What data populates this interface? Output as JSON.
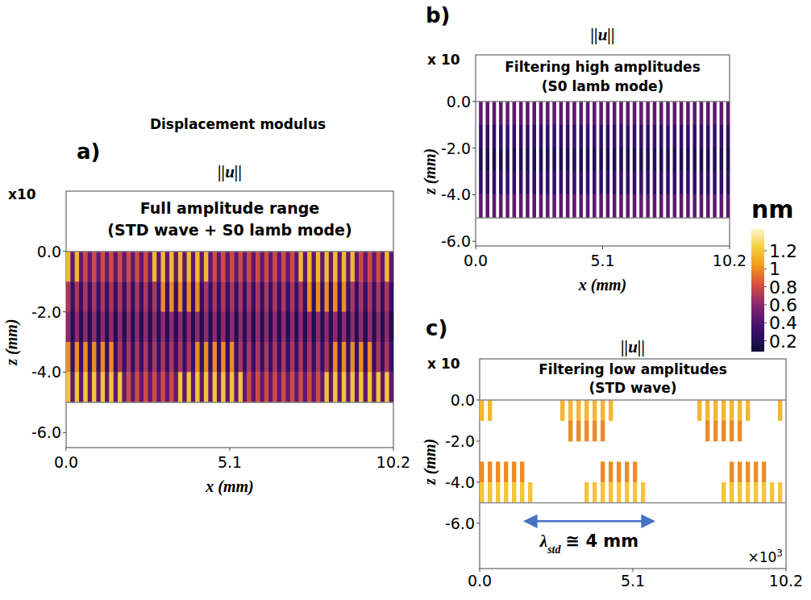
{
  "title": "Displacement modulus",
  "colorbar": {
    "title": "nm",
    "range": [
      0.08,
      1.45
    ],
    "ticks": [
      0.2,
      0.4,
      0.6,
      0.8,
      1,
      1.2
    ]
  },
  "chart_data": [
    {
      "type": "heatmap",
      "panel_label": "a)",
      "title": "||u||",
      "subtitle": [
        "Full amplitude range",
        "(STD wave + S0 lamb mode)"
      ],
      "x_label": "x (mm)",
      "y_label": "z (mm)",
      "y_scale_label": "x10",
      "xlim": [
        0,
        10.2
      ],
      "ylim": [
        -6.5,
        2.0
      ],
      "xticks": [
        {
          "value": 0,
          "label": "0.0"
        },
        5.1,
        10.2
      ],
      "yticks": [
        {
          "value": 0,
          "label": "0.0"
        },
        {
          "value": -2,
          "label": "-2.0"
        },
        {
          "value": -4,
          "label": "-4.0"
        },
        {
          "value": -6,
          "label": "-6.0"
        }
      ],
      "cells_x_range": [
        0,
        10.2
      ],
      "cells_z_range": [
        0,
        -5
      ],
      "cells": [
        [
          1.15,
          0.45,
          1.15,
          0.45,
          0.8,
          0.45,
          0.8,
          0.45,
          0.8,
          0.45,
          0.8,
          0.45,
          0.8,
          0.45,
          0.8,
          0.45,
          0.8,
          0.45,
          0.8,
          0.45,
          1.15,
          0.45,
          1.15,
          0.45,
          1.15,
          0.45,
          1.15,
          0.45,
          1.15,
          0.45,
          1.15,
          0.45,
          1.15,
          0.45,
          0.8,
          0.45,
          0.8,
          0.45,
          0.8,
          0.45,
          0.8,
          0.45,
          0.8,
          0.45,
          0.8,
          0.45,
          0.8,
          0.45,
          0.8,
          0.45,
          0.8,
          0.45,
          0.8,
          0.45,
          1.15,
          0.45,
          1.15,
          0.45,
          1.15,
          0.45,
          1.15,
          0.45,
          1.15,
          0.45,
          1.15,
          0.45,
          1.15,
          0.45,
          0.8,
          0.45,
          0.8,
          0.45,
          0.8,
          0.45,
          1.15,
          0.45
        ],
        [
          0.7,
          0.3,
          0.7,
          0.3,
          0.7,
          0.3,
          0.7,
          0.3,
          0.7,
          0.3,
          0.7,
          0.3,
          0.7,
          0.3,
          0.7,
          0.3,
          0.7,
          0.3,
          0.7,
          0.3,
          0.7,
          0.3,
          1,
          0.3,
          1,
          0.3,
          1,
          0.3,
          1,
          0.3,
          1,
          0.3,
          0.7,
          0.3,
          0.7,
          0.3,
          0.7,
          0.3,
          0.7,
          0.3,
          0.7,
          0.3,
          0.7,
          0.3,
          0.7,
          0.3,
          0.7,
          0.3,
          0.7,
          0.3,
          0.7,
          0.3,
          0.7,
          0.3,
          0.7,
          0.3,
          1,
          0.3,
          1,
          0.3,
          1,
          0.3,
          1,
          0.3,
          1,
          0.3,
          0.7,
          0.3,
          0.7,
          0.3,
          0.7,
          0.3,
          0.7,
          0.3,
          0.7,
          0.3
        ],
        [
          0.62,
          0.2,
          0.62,
          0.2,
          0.62,
          0.2,
          0.62,
          0.2,
          0.62,
          0.2,
          0.62,
          0.2,
          0.62,
          0.2,
          0.62,
          0.2,
          0.62,
          0.2,
          0.62,
          0.2,
          0.62,
          0.2,
          0.62,
          0.2,
          0.62,
          0.2,
          0.62,
          0.2,
          0.62,
          0.2,
          0.62,
          0.2,
          0.62,
          0.2,
          0.62,
          0.2,
          0.62,
          0.2,
          0.62,
          0.2,
          0.62,
          0.2,
          0.62,
          0.2,
          0.62,
          0.2,
          0.62,
          0.2,
          0.62,
          0.2,
          0.62,
          0.2,
          0.62,
          0.2,
          0.62,
          0.2,
          0.62,
          0.2,
          0.62,
          0.2,
          0.62,
          0.2,
          0.62,
          0.2,
          0.62,
          0.2,
          0.62,
          0.2,
          0.62,
          0.2,
          0.62,
          0.2,
          0.62,
          0.2,
          0.62,
          0.2
        ],
        [
          1,
          0.3,
          1,
          0.3,
          1,
          0.3,
          1,
          0.3,
          1,
          0.3,
          1,
          0.3,
          0.7,
          0.3,
          0.7,
          0.3,
          0.7,
          0.3,
          0.7,
          0.3,
          0.7,
          0.3,
          0.7,
          0.3,
          0.7,
          0.3,
          0.7,
          0.3,
          0.7,
          0.3,
          1,
          0.3,
          1,
          0.3,
          1,
          0.3,
          1,
          0.3,
          1,
          0.3,
          0.7,
          0.3,
          0.7,
          0.3,
          0.7,
          0.3,
          0.7,
          0.3,
          0.7,
          0.3,
          0.7,
          0.3,
          0.7,
          0.3,
          0.7,
          0.3,
          0.7,
          0.3,
          0.7,
          0.3,
          0.7,
          0.3,
          1,
          0.3,
          1,
          0.3,
          1,
          0.3,
          1,
          0.3,
          1,
          0.3,
          0.7,
          0.3,
          0.7,
          0.3
        ],
        [
          1.2,
          0.45,
          1.2,
          0.45,
          1.2,
          0.45,
          1.2,
          0.45,
          1.2,
          0.45,
          1.2,
          0.45,
          1.2,
          0.45,
          0.8,
          0.45,
          0.8,
          0.45,
          0.8,
          0.45,
          0.8,
          0.45,
          0.8,
          0.45,
          0.8,
          0.45,
          1.2,
          0.45,
          1.2,
          0.45,
          1.2,
          0.45,
          1.2,
          0.45,
          1.2,
          0.45,
          1.2,
          0.45,
          1.2,
          0.45,
          1.2,
          0.45,
          0.8,
          0.45,
          0.8,
          0.45,
          0.8,
          0.45,
          0.8,
          0.45,
          0.8,
          0.45,
          0.8,
          0.45,
          0.8,
          0.45,
          0.8,
          0.45,
          0.8,
          0.45,
          1.2,
          0.45,
          1.2,
          0.45,
          1.2,
          0.45,
          1.2,
          0.45,
          1.2,
          0.45,
          1.2,
          0.45,
          1.2,
          0.45,
          1.2,
          0.45
        ]
      ]
    },
    {
      "type": "heatmap",
      "panel_label": "b)",
      "title": "||u||",
      "subtitle": [
        "Filtering high amplitudes",
        "(S0 lamb mode)"
      ],
      "x_label": "x (mm)",
      "y_label": "z (mm)",
      "y_scale_label": "x 10",
      "xlim": [
        0,
        10.2
      ],
      "ylim": [
        -6.2,
        2.0
      ],
      "xticks": [
        {
          "value": 0,
          "label": "0.0"
        },
        5.1,
        10.2
      ],
      "yticks": [
        {
          "value": 0,
          "label": "0.0"
        },
        {
          "value": -2,
          "label": "-2.0"
        },
        {
          "value": -4,
          "label": "-4.0"
        },
        {
          "value": -6,
          "label": "-6.0"
        }
      ],
      "shown_range": [
        0.05,
        0.55
      ]
    },
    {
      "type": "heatmap",
      "panel_label": "c)",
      "title": "||u||",
      "subtitle": [
        "Filtering low amplitudes",
        "(STD wave)"
      ],
      "y_label": "z (mm)",
      "y_scale_label": "x 10",
      "xlim": [
        0,
        10.2
      ],
      "ylim": [
        -8.2,
        2.0
      ],
      "xticks": [
        {
          "value": 0,
          "label": "0.0"
        },
        5.1,
        10.2
      ],
      "yticks": [
        {
          "value": 0,
          "label": "0.0"
        },
        {
          "value": -2,
          "label": "-2.0"
        },
        {
          "value": -4,
          "label": "-4.0"
        },
        {
          "value": -6,
          "label": "-6.0"
        }
      ],
      "x_offset_label": {
        "base": "×10",
        "exponent": "3"
      },
      "shown_range": [
        0.95,
        1.5
      ],
      "annotation": {
        "symbol": "λ",
        "subscript": "std",
        "text": "≅ 4 mm",
        "x_start": 1.5,
        "x_end": 5.8,
        "z": -5.9
      }
    }
  ]
}
